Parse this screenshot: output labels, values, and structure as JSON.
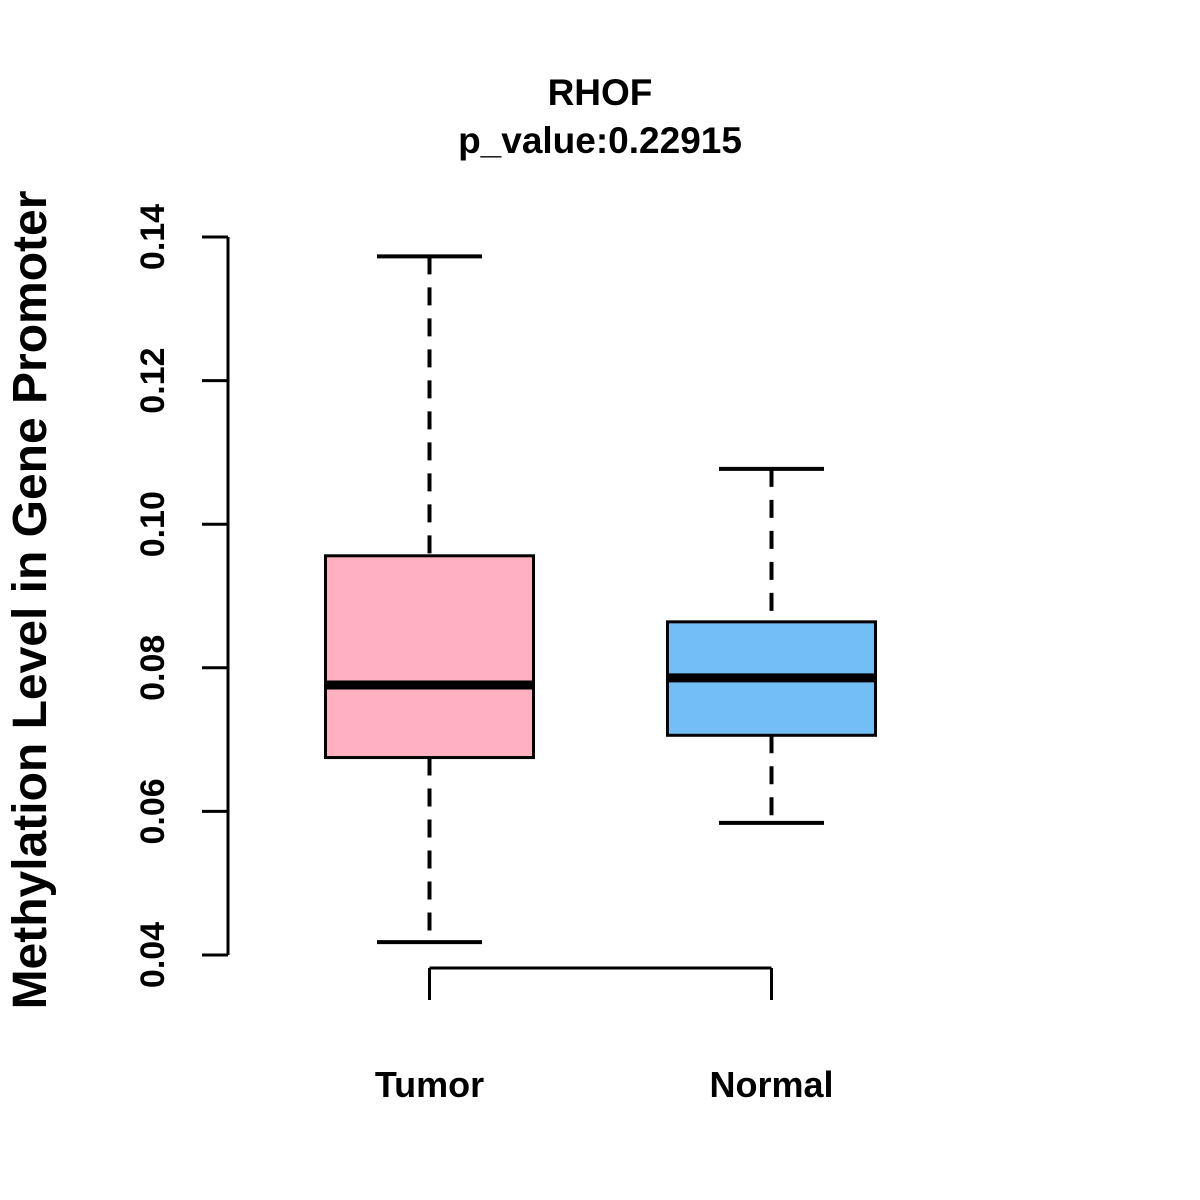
{
  "title": "RHOF",
  "subtitle": "p_value:0.22915",
  "chart_data": {
    "type": "boxplot",
    "title": "RHOF",
    "subtitle": "p_value:0.22915",
    "xlabel": "",
    "ylabel": "Methylation Level in Gene Promoter",
    "ylim": [
      0.04,
      0.14
    ],
    "yticks": [
      0.04,
      0.06,
      0.08,
      0.1,
      0.12,
      0.14
    ],
    "ytick_labels": [
      "0.04",
      "0.06",
      "0.08",
      "0.10",
      "0.12",
      "0.14"
    ],
    "categories": [
      "Tumor",
      "Normal"
    ],
    "series": [
      {
        "name": "Tumor",
        "fill_color": "#FFB1C1",
        "lower_whisker": 0.0418,
        "q1": 0.0675,
        "median": 0.0776,
        "q3": 0.0956,
        "upper_whisker": 0.1373
      },
      {
        "name": "Normal",
        "fill_color": "#73BEF5",
        "lower_whisker": 0.0584,
        "q1": 0.0706,
        "median": 0.0786,
        "q3": 0.0864,
        "upper_whisker": 0.1077
      }
    ],
    "border_color": "#000000",
    "background": "#FFFFFF",
    "grid": false,
    "legend": "none",
    "whisker_style": "dashed"
  }
}
